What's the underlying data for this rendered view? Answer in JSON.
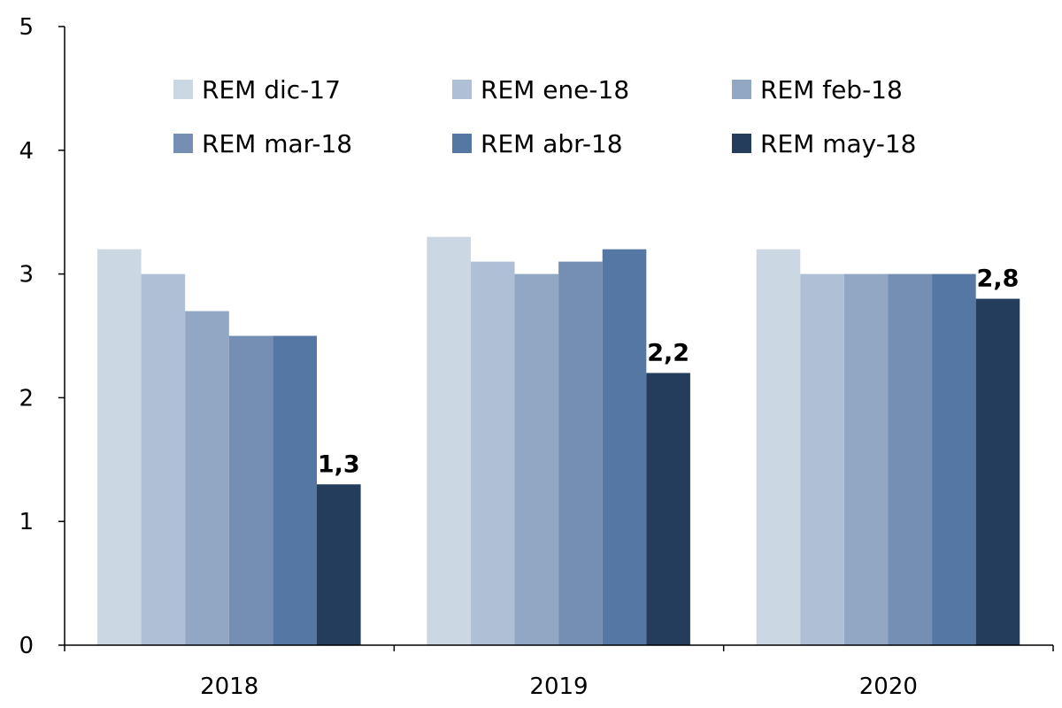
{
  "chart_data": {
    "type": "bar",
    "title": "",
    "xlabel": "",
    "ylabel": "",
    "categories": [
      "2018",
      "2019",
      "2020"
    ],
    "ylim": [
      0,
      5
    ],
    "yticks": [
      "0",
      "1",
      "2",
      "3",
      "4",
      "5"
    ],
    "legend_position": "top",
    "series": [
      {
        "name": "REM dic-17",
        "color": "#ccd7e4",
        "values": [
          3.2,
          3.3,
          3.2
        ]
      },
      {
        "name": "REM ene-18",
        "color": "#afc0d6",
        "values": [
          3.0,
          3.1,
          3.0
        ]
      },
      {
        "name": "REM feb-18",
        "color": "#91a7c4",
        "values": [
          2.7,
          3.0,
          3.0
        ]
      },
      {
        "name": "REM mar-18",
        "color": "#748fb3",
        "values": [
          2.5,
          3.1,
          3.0
        ]
      },
      {
        "name": "REM abr-18",
        "color": "#5577a3",
        "values": [
          2.5,
          3.2,
          3.0
        ]
      },
      {
        "name": "REM may-18",
        "color": "#253d5c",
        "values": [
          1.3,
          2.2,
          2.8
        ]
      }
    ],
    "data_labels": [
      {
        "series": "REM may-18",
        "category": "2018",
        "text": "1,3"
      },
      {
        "series": "REM may-18",
        "category": "2019",
        "text": "2,2"
      },
      {
        "series": "REM may-18",
        "category": "2020",
        "text": "2,8"
      }
    ]
  }
}
